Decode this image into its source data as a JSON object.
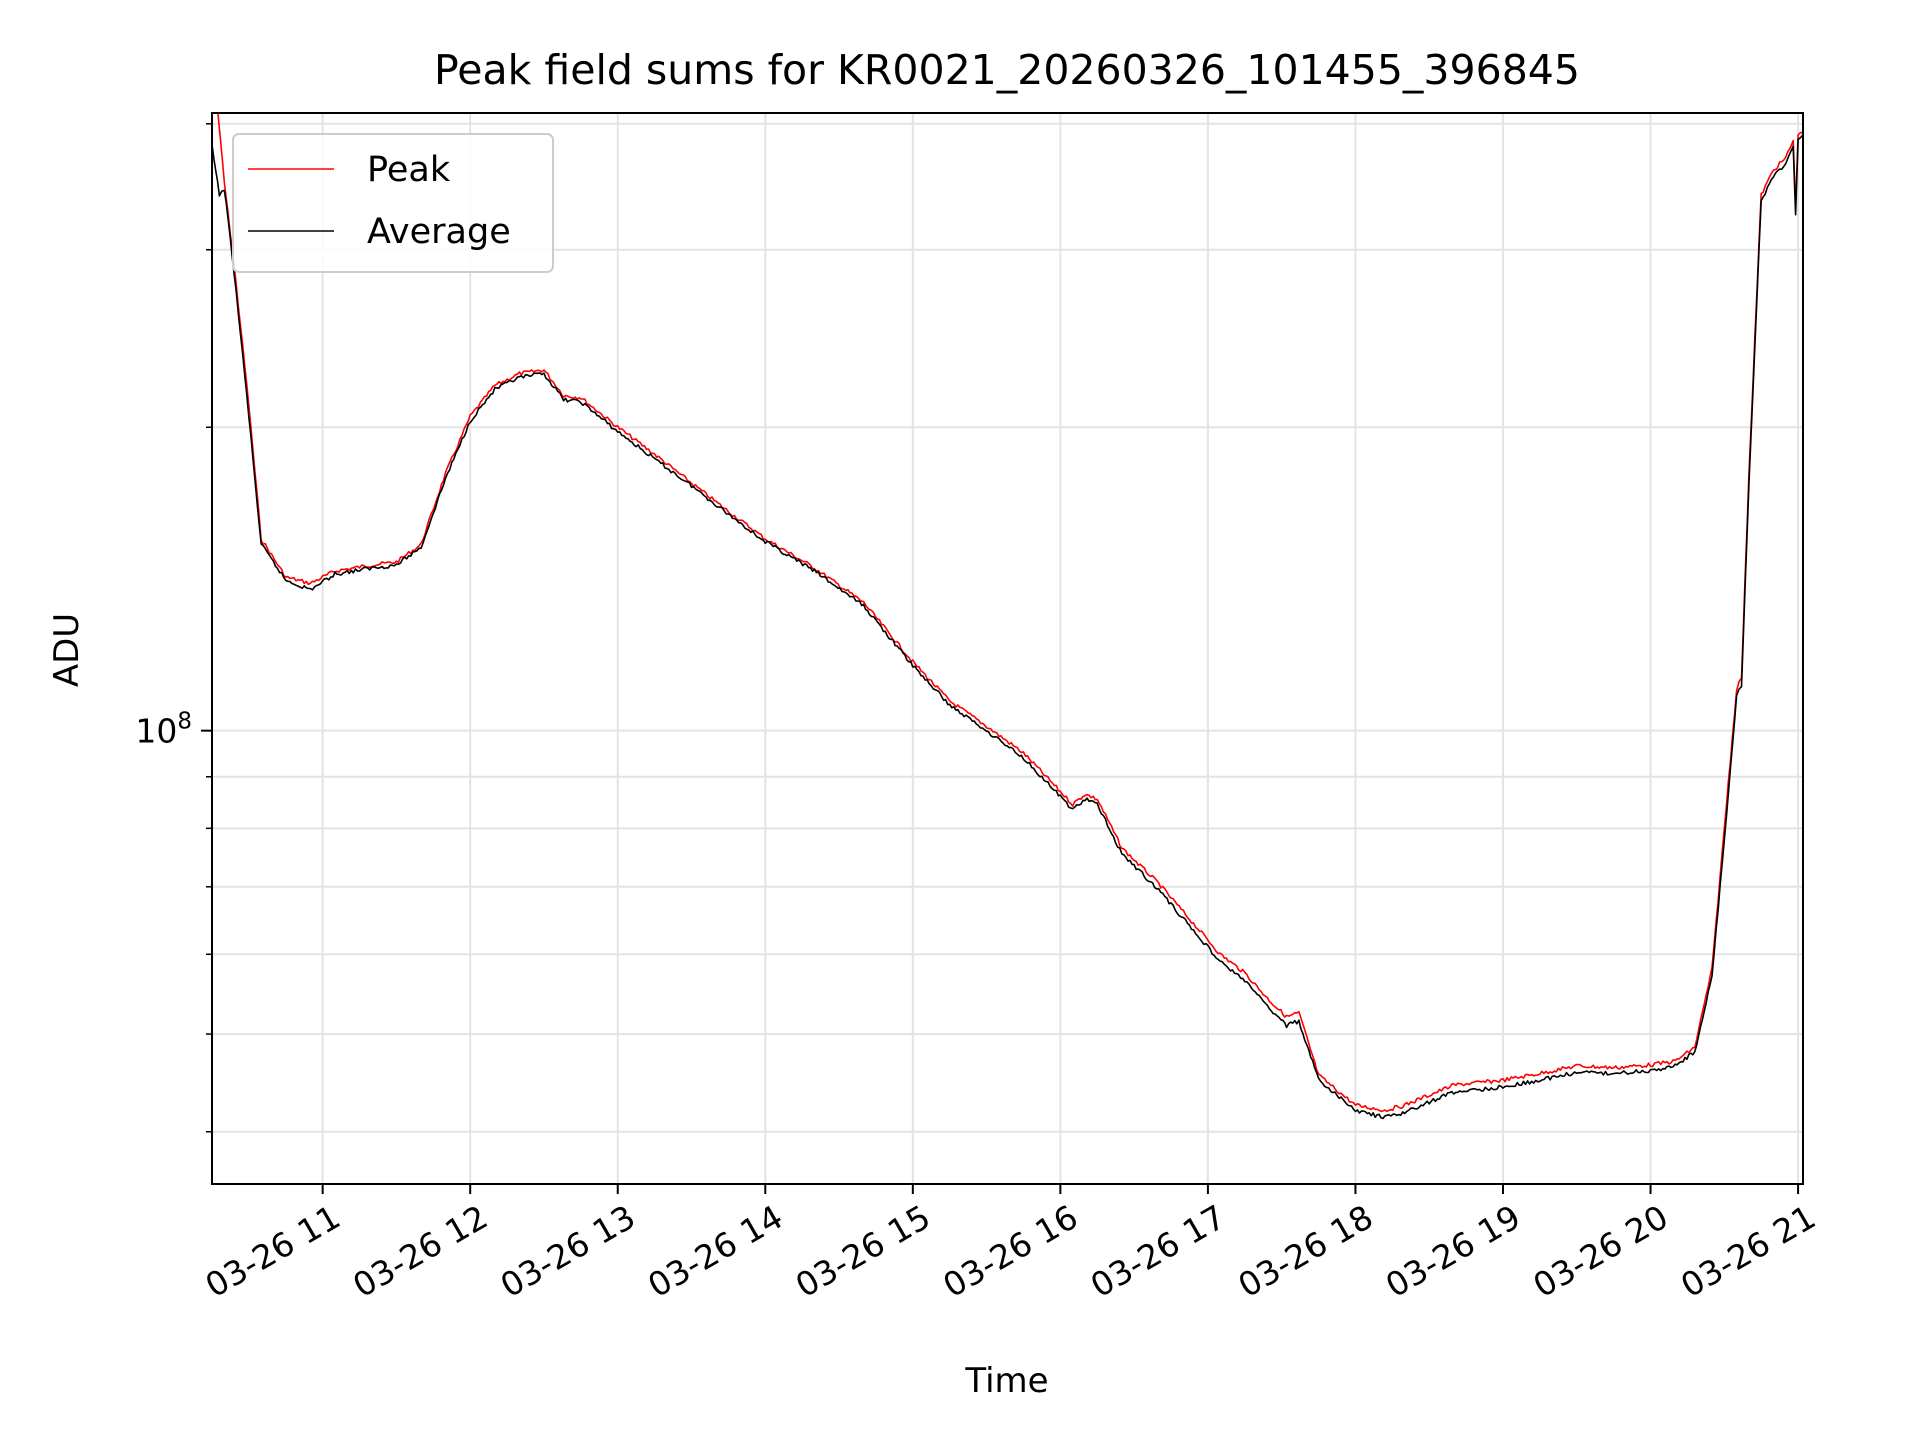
{
  "chart_data": {
    "type": "line",
    "title": "Peak field sums for KR0021_20260326_101455_396845",
    "xlabel": "Time",
    "ylabel": "ADU",
    "y_scale": "log",
    "grid": true,
    "legend_position": "upper left",
    "xlim": [
      "2026-03-26 10:15",
      "2026-03-26 21:02"
    ],
    "ylim": [
      35500000,
      410000000
    ],
    "x_tick_labels": [
      "03-26 11",
      "03-26 12",
      "03-26 13",
      "03-26 14",
      "03-26 15",
      "03-26 16",
      "03-26 17",
      "03-26 18",
      "03-26 19",
      "03-26 20",
      "03-26 21"
    ],
    "x_ticks": [
      "2026-03-26 11:00",
      "2026-03-26 12:00",
      "2026-03-26 13:00",
      "2026-03-26 14:00",
      "2026-03-26 15:00",
      "2026-03-26 16:00",
      "2026-03-26 17:00",
      "2026-03-26 18:00",
      "2026-03-26 19:00",
      "2026-03-26 20:00",
      "2026-03-26 21:00"
    ],
    "y_major_ticks": [
      100000000
    ],
    "y_major_tick_labels": [
      {
        "base": "10",
        "exp": "8"
      }
    ],
    "y_minor_ticks": [
      40000000,
      50000000,
      60000000,
      70000000,
      80000000,
      90000000,
      200000000,
      300000000,
      400000000
    ],
    "series": [
      {
        "name": "Peak",
        "color": "#ff0000",
        "x": [
          "2026-03-26 10:17",
          "2026-03-26 10:20",
          "2026-03-26 10:24",
          "2026-03-26 10:30",
          "2026-03-26 10:35",
          "2026-03-26 10:45",
          "2026-03-26 10:55",
          "2026-03-26 11:05",
          "2026-03-26 11:20",
          "2026-03-26 11:30",
          "2026-03-26 11:40",
          "2026-03-26 11:50",
          "2026-03-26 12:00",
          "2026-03-26 12:10",
          "2026-03-26 12:20",
          "2026-03-26 12:30",
          "2026-03-26 12:38",
          "2026-03-26 12:45",
          "2026-03-26 13:00",
          "2026-03-26 13:15",
          "2026-03-26 13:30",
          "2026-03-26 13:45",
          "2026-03-26 14:00",
          "2026-03-26 14:20",
          "2026-03-26 14:40",
          "2026-03-26 15:00",
          "2026-03-26 15:15",
          "2026-03-26 15:30",
          "2026-03-26 15:45",
          "2026-03-26 16:00",
          "2026-03-26 16:05",
          "2026-03-26 16:10",
          "2026-03-26 16:15",
          "2026-03-26 16:25",
          "2026-03-26 16:40",
          "2026-03-26 16:55",
          "2026-03-26 17:05",
          "2026-03-26 17:15",
          "2026-03-26 17:25",
          "2026-03-26 17:32",
          "2026-03-26 17:37",
          "2026-03-26 17:45",
          "2026-03-26 18:00",
          "2026-03-26 18:12",
          "2026-03-26 18:20",
          "2026-03-26 18:30",
          "2026-03-26 18:40",
          "2026-03-26 19:00",
          "2026-03-26 19:15",
          "2026-03-26 19:30",
          "2026-03-26 19:45",
          "2026-03-26 20:00",
          "2026-03-26 20:10",
          "2026-03-26 20:18",
          "2026-03-26 20:25",
          "2026-03-26 20:30",
          "2026-03-26 20:35",
          "2026-03-26 20:37",
          "2026-03-26 20:40",
          "2026-03-26 20:45",
          "2026-03-26 20:50",
          "2026-03-26 20:55",
          "2026-03-26 20:58",
          "2026-03-26 20:59",
          "2026-03-26 21:00",
          "2026-03-26 21:02"
        ],
        "values": [
          420000000,
          350000000,
          290000000,
          210000000,
          155000000,
          142000000,
          140000000,
          144000000,
          146000000,
          147000000,
          153000000,
          180000000,
          205000000,
          220000000,
          226000000,
          228000000,
          215000000,
          214000000,
          200000000,
          188000000,
          176000000,
          165000000,
          155000000,
          145000000,
          134000000,
          117000000,
          107000000,
          101000000,
          95000000,
          87000000,
          84500000,
          86500000,
          85500000,
          76500000,
          70500000,
          64000000,
          60000000,
          57500000,
          54000000,
          52000000,
          52500000,
          45500000,
          42500000,
          42000000,
          42500000,
          43500000,
          44500000,
          45000000,
          45700000,
          46500000,
          46300000,
          46600000,
          47000000,
          48500000,
          58000000,
          80000000,
          110000000,
          113000000,
          180000000,
          340000000,
          360000000,
          370000000,
          385000000,
          330000000,
          390000000,
          392000000
        ]
      },
      {
        "name": "Average",
        "color": "#000000",
        "x": [
          "2026-03-26 10:15",
          "2026-03-26 10:18",
          "2026-03-26 10:20",
          "2026-03-26 10:24",
          "2026-03-26 10:30",
          "2026-03-26 10:35",
          "2026-03-26 10:45",
          "2026-03-26 10:55",
          "2026-03-26 11:05",
          "2026-03-26 11:20",
          "2026-03-26 11:30",
          "2026-03-26 11:40",
          "2026-03-26 11:50",
          "2026-03-26 12:00",
          "2026-03-26 12:10",
          "2026-03-26 12:20",
          "2026-03-26 12:30",
          "2026-03-26 12:38",
          "2026-03-26 12:45",
          "2026-03-26 13:00",
          "2026-03-26 13:15",
          "2026-03-26 13:30",
          "2026-03-26 13:45",
          "2026-03-26 14:00",
          "2026-03-26 14:20",
          "2026-03-26 14:40",
          "2026-03-26 15:00",
          "2026-03-26 15:15",
          "2026-03-26 15:30",
          "2026-03-26 15:45",
          "2026-03-26 16:00",
          "2026-03-26 16:05",
          "2026-03-26 16:10",
          "2026-03-26 16:15",
          "2026-03-26 16:25",
          "2026-03-26 16:40",
          "2026-03-26 16:55",
          "2026-03-26 17:05",
          "2026-03-26 17:15",
          "2026-03-26 17:25",
          "2026-03-26 17:32",
          "2026-03-26 17:37",
          "2026-03-26 17:45",
          "2026-03-26 18:00",
          "2026-03-26 18:12",
          "2026-03-26 18:20",
          "2026-03-26 18:30",
          "2026-03-26 18:40",
          "2026-03-26 19:00",
          "2026-03-26 19:15",
          "2026-03-26 19:30",
          "2026-03-26 19:45",
          "2026-03-26 20:00",
          "2026-03-26 20:10",
          "2026-03-26 20:18",
          "2026-03-26 20:25",
          "2026-03-26 20:30",
          "2026-03-26 20:35",
          "2026-03-26 20:37",
          "2026-03-26 20:40",
          "2026-03-26 20:45",
          "2026-03-26 20:50",
          "2026-03-26 20:55",
          "2026-03-26 20:58",
          "2026-03-26 20:59",
          "2026-03-26 21:00",
          "2026-03-26 21:02"
        ],
        "values": [
          380000000,
          340000000,
          345000000,
          285000000,
          205000000,
          153000000,
          141000000,
          138000000,
          143000000,
          145000000,
          146000000,
          152000000,
          178000000,
          203000000,
          218000000,
          224000000,
          226000000,
          213000000,
          212000000,
          198000000,
          186000000,
          175000000,
          164000000,
          154000000,
          144000000,
          133000000,
          116000000,
          106000000,
          100000000,
          94000000,
          86000000,
          83500000,
          85500000,
          84500000,
          75500000,
          69500000,
          63000000,
          59000000,
          56500000,
          53000000,
          51000000,
          51500000,
          45000000,
          42000000,
          41300000,
          41800000,
          42800000,
          43800000,
          44300000,
          45000000,
          45800000,
          45700000,
          46000000,
          46500000,
          48000000,
          57000000,
          78000000,
          108000000,
          111000000,
          176000000,
          335000000,
          355000000,
          365000000,
          380000000,
          325000000,
          385000000,
          390000000
        ]
      }
    ]
  }
}
